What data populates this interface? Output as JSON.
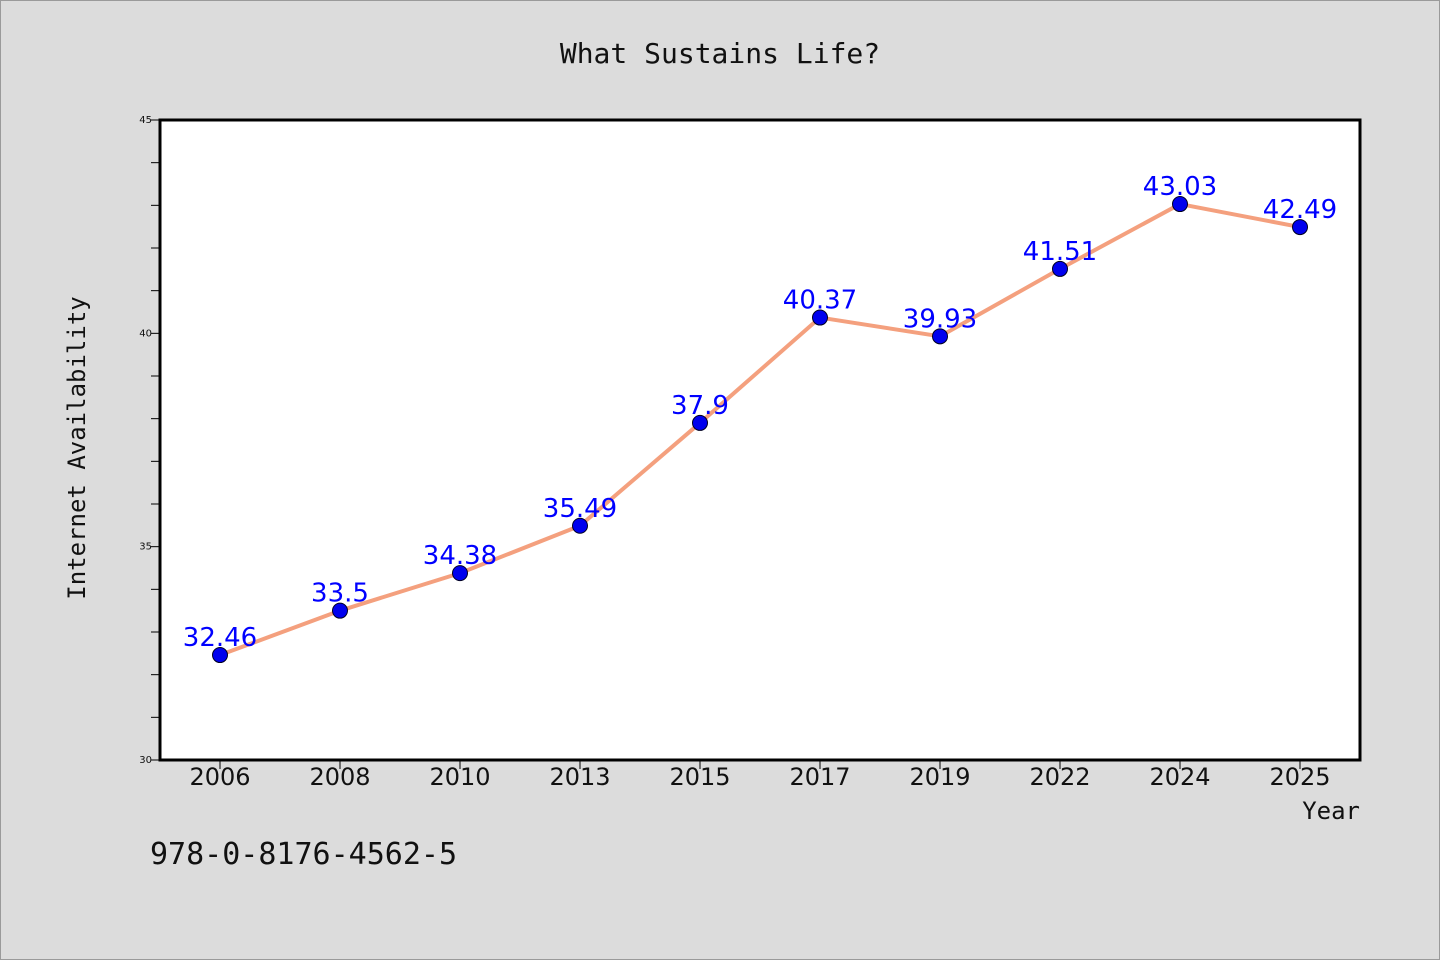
{
  "chart_data": {
    "type": "line",
    "title": "What Sustains Life?",
    "xlabel": "Year",
    "ylabel": "Internet Availability",
    "categories": [
      "2006",
      "2008",
      "2010",
      "2013",
      "2015",
      "2017",
      "2019",
      "2022",
      "2024",
      "2025"
    ],
    "series": [
      {
        "values": [
          32.46,
          33.5,
          34.38,
          35.49,
          37.9,
          40.37,
          39.93,
          41.51,
          43.03,
          42.49
        ],
        "line_color": "#f4a07e",
        "marker_color": "#0000ee"
      }
    ],
    "data_labels": [
      "32.46",
      "33.5",
      "34.38",
      "35.49",
      "37.9",
      "40.37",
      "39.93",
      "41.51",
      "43.03",
      "42.49"
    ],
    "ylim": [
      30,
      45
    ],
    "yticks": [
      "30",
      "35",
      "40",
      "45"
    ],
    "grid": false,
    "label_color": "#0000ff"
  },
  "footer": {
    "isbn": "978-0-8176-4562-5"
  }
}
